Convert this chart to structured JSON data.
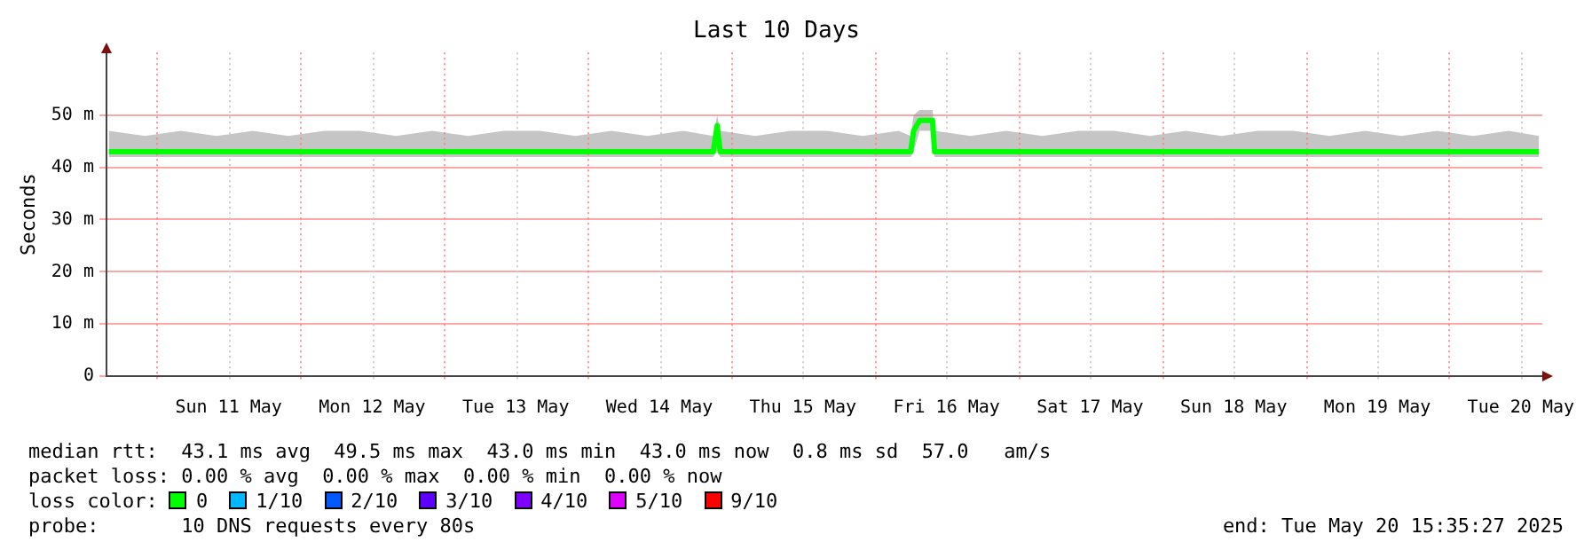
{
  "chart_data": {
    "type": "line",
    "title": "Last 10 Days",
    "ylabel": "Seconds",
    "legend_title": "loss color:",
    "legend": "bottom",
    "annotations": [
      "median rtt:  43.1 ms avg  49.5 ms max  43.0 ms min  43.0 ms now  0.8 ms sd  57.0   am/s",
      "packet loss: 0.00 % avg  0.00 % max  0.00 % min  0.00 % now",
      "probe:       10 DNS requests every 80s",
      "end: Tue May 20 15:35:27 2025"
    ],
    "xlim": [
      "2025-05-10T15:35",
      "2025-05-20T15:35"
    ],
    "xticks": [
      {
        "value": "2025-05-11T00:00",
        "label": null
      },
      {
        "value": "2025-05-11T12:00",
        "label": "Sun 11 May"
      },
      {
        "value": "2025-05-12T00:00",
        "label": null
      },
      {
        "value": "2025-05-12T12:00",
        "label": "Mon 12 May"
      },
      {
        "value": "2025-05-13T00:00",
        "label": null
      },
      {
        "value": "2025-05-13T12:00",
        "label": "Tue 13 May"
      },
      {
        "value": "2025-05-14T00:00",
        "label": null
      },
      {
        "value": "2025-05-14T12:00",
        "label": "Wed 14 May"
      },
      {
        "value": "2025-05-15T00:00",
        "label": null
      },
      {
        "value": "2025-05-15T12:00",
        "label": "Thu 15 May"
      },
      {
        "value": "2025-05-16T00:00",
        "label": null
      },
      {
        "value": "2025-05-16T12:00",
        "label": "Fri 16 May"
      },
      {
        "value": "2025-05-17T00:00",
        "label": null
      },
      {
        "value": "2025-05-17T12:00",
        "label": "Sat 17 May"
      },
      {
        "value": "2025-05-18T00:00",
        "label": null
      },
      {
        "value": "2025-05-18T12:00",
        "label": "Sun 18 May"
      },
      {
        "value": "2025-05-19T00:00",
        "label": null
      },
      {
        "value": "2025-05-19T12:00",
        "label": "Mon 19 May"
      },
      {
        "value": "2025-05-20T00:00",
        "label": null
      },
      {
        "value": "2025-05-20T12:00",
        "label": "Tue 20 May"
      }
    ],
    "ylim": [
      0,
      62
    ],
    "yticks": [
      0,
      {
        "value": 10,
        "label": "10 m"
      },
      {
        "value": 20,
        "label": "20 m"
      },
      {
        "value": 30,
        "label": "30 m"
      },
      {
        "value": 40,
        "label": "40 m"
      },
      {
        "value": 50,
        "label": "50 m"
      }
    ],
    "grid": true,
    "series": [
      {
        "name": "0",
        "color": "#00ff00",
        "x": [
          "2025-05-10T16:00",
          "2025-05-10T22:00",
          "2025-05-11T04:00",
          "2025-05-11T10:00",
          "2025-05-11T16:00",
          "2025-05-11T22:00",
          "2025-05-12T04:00",
          "2025-05-12T10:00",
          "2025-05-12T16:00",
          "2025-05-12T22:00",
          "2025-05-13T04:00",
          "2025-05-13T10:00",
          "2025-05-13T16:00",
          "2025-05-13T22:00",
          "2025-05-14T04:00",
          "2025-05-14T10:00",
          "2025-05-14T16:00",
          "2025-05-14T21:00",
          "2025-05-14T21:40",
          "2025-05-14T22:10",
          "2025-05-15T04:00",
          "2025-05-15T10:00",
          "2025-05-15T16:00",
          "2025-05-15T22:00",
          "2025-05-16T04:00",
          "2025-05-16T06:00",
          "2025-05-16T06:30",
          "2025-05-16T07:30",
          "2025-05-16T09:00",
          "2025-05-16T09:40",
          "2025-05-16T10:00",
          "2025-05-16T16:00",
          "2025-05-16T22:00",
          "2025-05-17T04:00",
          "2025-05-17T10:00",
          "2025-05-17T16:00",
          "2025-05-17T22:00",
          "2025-05-18T04:00",
          "2025-05-18T10:00",
          "2025-05-18T16:00",
          "2025-05-18T22:00",
          "2025-05-19T04:00",
          "2025-05-19T10:00",
          "2025-05-19T16:00",
          "2025-05-19T22:00",
          "2025-05-20T04:00",
          "2025-05-20T10:00",
          "2025-05-20T15:00"
        ],
        "values": [
          43,
          43,
          43,
          43,
          43,
          43,
          43,
          43,
          43,
          43,
          43,
          43,
          43,
          43,
          43,
          43,
          43,
          43,
          48,
          43,
          43,
          43,
          43,
          43,
          43,
          43,
          47,
          49,
          49,
          49,
          43,
          43,
          43,
          43,
          43,
          43,
          43,
          43,
          43,
          43,
          43,
          43,
          43,
          43,
          43,
          43,
          43,
          43
        ],
        "lower": [
          42,
          42,
          42,
          42,
          42,
          42,
          42,
          42,
          42,
          42,
          42,
          42,
          42,
          42,
          42,
          42,
          42,
          42,
          43,
          42,
          42,
          42,
          42,
          42,
          42,
          42,
          43,
          47,
          47,
          47,
          42,
          42,
          42,
          42,
          42,
          42,
          42,
          42,
          42,
          42,
          42,
          42,
          42,
          42,
          42,
          42,
          42,
          42
        ],
        "upper": [
          47,
          46,
          47,
          46,
          47,
          46,
          47,
          47,
          46,
          47,
          46,
          47,
          47,
          46,
          47,
          46,
          47,
          46,
          50,
          47,
          46,
          47,
          47,
          46,
          47,
          46,
          50,
          51,
          51,
          51,
          47,
          46,
          47,
          46,
          47,
          47,
          46,
          47,
          46,
          47,
          47,
          46,
          47,
          46,
          47,
          46,
          47,
          46
        ]
      },
      {
        "name": "1/10",
        "color": "#00b8ff"
      },
      {
        "name": "2/10",
        "color": "#0059ff"
      },
      {
        "name": "3/10",
        "color": "#5e00ff"
      },
      {
        "name": "4/10",
        "color": "#7e00ff"
      },
      {
        "name": "5/10",
        "color": "#dd00ff"
      },
      {
        "name": "9/10",
        "color": "#ff0000"
      }
    ]
  }
}
